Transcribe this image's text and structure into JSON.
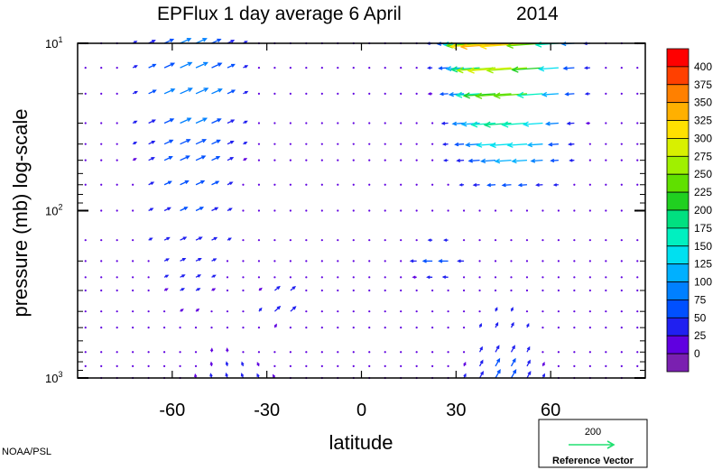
{
  "chart_data": {
    "type": "vector-field",
    "title": {
      "main": "EPFlux  1 day average  6 April",
      "year": "2014"
    },
    "xlabel": "latitude",
    "ylabel": "pressure (mb)  log-scale",
    "xlim": [
      -90,
      90
    ],
    "ylim": [
      1000,
      10
    ],
    "yscale": "log",
    "xticks": [
      -60,
      -30,
      0,
      30,
      60
    ],
    "xtick_labels": [
      "-60",
      "-30",
      "0",
      "30",
      "60"
    ],
    "yticks": [
      {
        "base": "10",
        "exp": "1",
        "value": 10
      },
      {
        "base": "10",
        "exp": "2",
        "value": 100
      },
      {
        "base": "10",
        "exp": "3",
        "value": 1000
      }
    ],
    "pressure_levels": [
      10,
      14,
      20,
      30,
      40,
      50,
      70,
      100,
      150,
      200,
      250,
      300,
      400,
      500,
      700,
      850,
      1000
    ],
    "latitudes": [
      -87.5,
      -82.5,
      -77.5,
      -72.5,
      -67.5,
      -62.5,
      -57.5,
      -52.5,
      -47.5,
      -42.5,
      -37.5,
      -32.5,
      -27.5,
      -22.5,
      -17.5,
      -12.5,
      -7.5,
      -2.5,
      2.5,
      7.5,
      12.5,
      17.5,
      22.5,
      27.5,
      32.5,
      37.5,
      42.5,
      47.5,
      52.5,
      57.5,
      62.5,
      67.5,
      72.5,
      77.5,
      82.5,
      87.5
    ],
    "colorbar": {
      "labels": [
        "400",
        "375",
        "350",
        "325",
        "300",
        "275",
        "250",
        "225",
        "200",
        "175",
        "150",
        "125",
        "100",
        "75",
        "50",
        "25",
        "0"
      ],
      "colors": [
        "#ff0000",
        "#ff4000",
        "#ff8000",
        "#ffb000",
        "#ffe000",
        "#d8f000",
        "#a0f000",
        "#60e000",
        "#20d020",
        "#00e080",
        "#00f0c0",
        "#00e0f0",
        "#00b0ff",
        "#0080ff",
        "#0050ff",
        "#2020f0",
        "#6000e0",
        "#7a20b0"
      ]
    },
    "reference_vector": {
      "value": "200",
      "label": "Reference Vector",
      "color": "#20e070"
    }
  },
  "credit": "NOAA/PSL"
}
